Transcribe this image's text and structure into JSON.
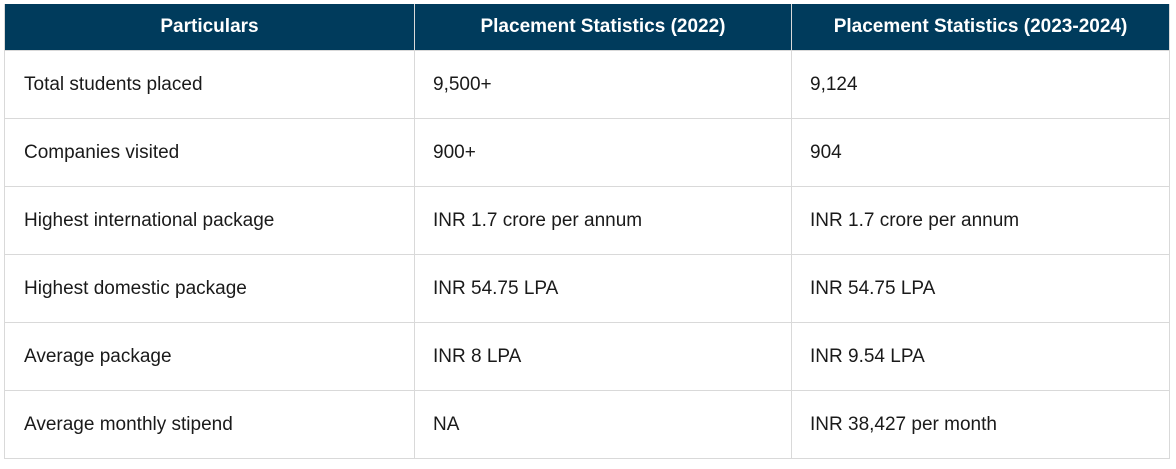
{
  "table": {
    "headers": [
      "Particulars",
      "Placement Statistics (2022)",
      "Placement Statistics (2023-2024)"
    ],
    "rows": [
      [
        "Total students placed",
        "9,500+",
        "9,124"
      ],
      [
        "Companies visited",
        "900+",
        "904"
      ],
      [
        "Highest international package",
        "INR 1.7 crore per annum",
        "INR 1.7 crore per annum"
      ],
      [
        "Highest domestic package",
        "INR 54.75 LPA",
        "INR 54.75 LPA"
      ],
      [
        "Average package",
        "INR 8 LPA",
        "INR 9.54 LPA"
      ],
      [
        "Average monthly stipend",
        "NA",
        "INR 38,427 per month"
      ]
    ]
  },
  "colors": {
    "header_bg": "#003b5c",
    "header_text": "#ffffff",
    "border": "#d9d9d9",
    "cell_text": "#1a1a1a"
  }
}
